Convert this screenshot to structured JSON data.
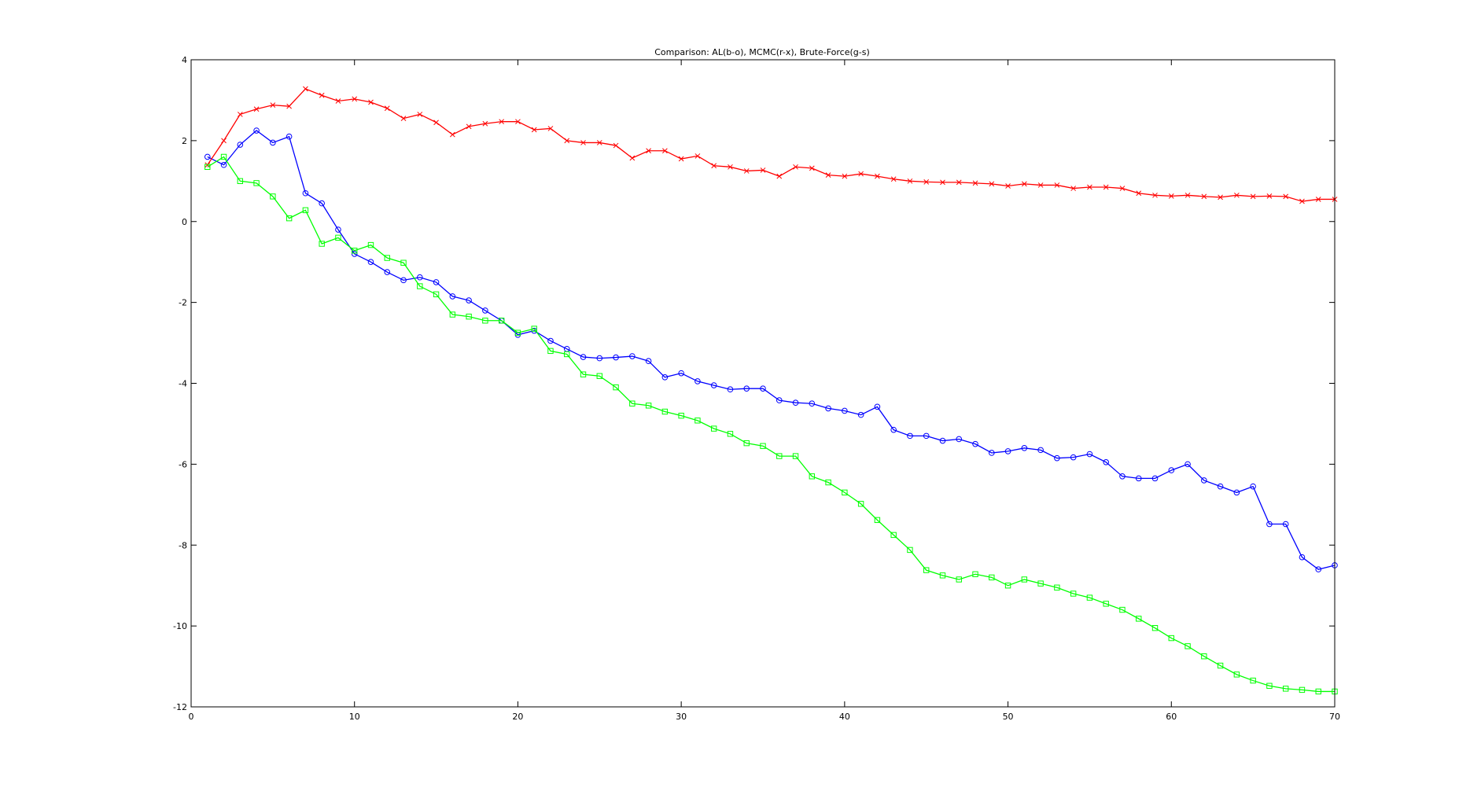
{
  "chart_data": {
    "type": "line",
    "title": "Comparison: AL(b-o), MCMC(r-x), Brute-Force(g-s)",
    "xlabel": "",
    "ylabel": "",
    "xlim": [
      0,
      70
    ],
    "ylim": [
      -12,
      4
    ],
    "xticks": [
      0,
      10,
      20,
      30,
      40,
      50,
      60,
      70
    ],
    "yticks": [
      -12,
      -10,
      -8,
      -6,
      -4,
      -2,
      0,
      2,
      4
    ],
    "grid": false,
    "legend": "none",
    "x": [
      1,
      2,
      3,
      4,
      5,
      6,
      7,
      8,
      9,
      10,
      11,
      12,
      13,
      14,
      15,
      16,
      17,
      18,
      19,
      20,
      21,
      22,
      23,
      24,
      25,
      26,
      27,
      28,
      29,
      30,
      31,
      32,
      33,
      34,
      35,
      36,
      37,
      38,
      39,
      40,
      41,
      42,
      43,
      44,
      45,
      46,
      47,
      48,
      49,
      50,
      51,
      52,
      53,
      54,
      55,
      56,
      57,
      58,
      59,
      60,
      61,
      62,
      63,
      64,
      65,
      66,
      67,
      68,
      69,
      70
    ],
    "series": [
      {
        "key": "al",
        "color": "#0000ff",
        "marker": "circle",
        "values": [
          1.6,
          1.4,
          1.9,
          2.25,
          1.95,
          2.1,
          0.7,
          0.45,
          -0.2,
          -0.8,
          -1.0,
          -1.25,
          -1.45,
          -1.38,
          -1.5,
          -1.85,
          -1.95,
          -2.2,
          -2.45,
          -2.8,
          -2.7,
          -2.95,
          -3.15,
          -3.35,
          -3.38,
          -3.36,
          -3.33,
          -3.45,
          -3.85,
          -3.75,
          -3.95,
          -4.05,
          -4.15,
          -4.13,
          -4.13,
          -4.42,
          -4.48,
          -4.5,
          -4.62,
          -4.68,
          -4.78,
          -4.58,
          -5.15,
          -5.3,
          -5.3,
          -5.42,
          -5.38,
          -5.5,
          -5.72,
          -5.68,
          -5.6,
          -5.65,
          -5.85,
          -5.83,
          -5.75,
          -5.95,
          -6.3,
          -6.35,
          -6.35,
          -6.15,
          -6.0,
          -6.4,
          -6.55,
          -6.7,
          -6.55,
          -7.48,
          -7.48,
          -8.3,
          -8.6,
          -8.5
        ]
      },
      {
        "key": "mcmc",
        "color": "#ff0000",
        "marker": "x",
        "values": [
          1.4,
          2.0,
          2.65,
          2.78,
          2.88,
          2.85,
          3.28,
          3.12,
          2.98,
          3.03,
          2.95,
          2.8,
          2.55,
          2.65,
          2.45,
          2.15,
          2.35,
          2.42,
          2.47,
          2.47,
          2.27,
          2.3,
          2.0,
          1.95,
          1.95,
          1.88,
          1.57,
          1.75,
          1.75,
          1.55,
          1.62,
          1.38,
          1.35,
          1.25,
          1.27,
          1.12,
          1.35,
          1.32,
          1.15,
          1.12,
          1.18,
          1.12,
          1.05,
          1.0,
          0.98,
          0.97,
          0.97,
          0.95,
          0.93,
          0.88,
          0.93,
          0.9,
          0.9,
          0.82,
          0.85,
          0.85,
          0.82,
          0.7,
          0.65,
          0.63,
          0.65,
          0.62,
          0.6,
          0.65,
          0.62,
          0.63,
          0.62,
          0.5,
          0.55,
          0.55
        ]
      },
      {
        "key": "bruteforce",
        "color": "#00ff00",
        "marker": "square",
        "values": [
          1.35,
          1.6,
          1.0,
          0.95,
          0.62,
          0.08,
          0.28,
          -0.55,
          -0.4,
          -0.72,
          -0.58,
          -0.9,
          -1.02,
          -1.6,
          -1.8,
          -2.3,
          -2.35,
          -2.45,
          -2.45,
          -2.75,
          -2.65,
          -3.2,
          -3.28,
          -3.78,
          -3.82,
          -4.1,
          -4.5,
          -4.55,
          -4.7,
          -4.8,
          -4.92,
          -5.12,
          -5.25,
          -5.48,
          -5.55,
          -5.8,
          -5.8,
          -6.3,
          -6.45,
          -6.7,
          -6.98,
          -7.38,
          -7.75,
          -8.12,
          -8.62,
          -8.75,
          -8.85,
          -8.72,
          -8.8,
          -9.0,
          -8.85,
          -8.95,
          -9.05,
          -9.2,
          -9.3,
          -9.45,
          -9.6,
          -9.82,
          -10.05,
          -10.3,
          -10.5,
          -10.75,
          -10.98,
          -11.2,
          -11.35,
          -11.48,
          -11.55,
          -11.58,
          -11.62,
          -11.62
        ]
      }
    ]
  }
}
